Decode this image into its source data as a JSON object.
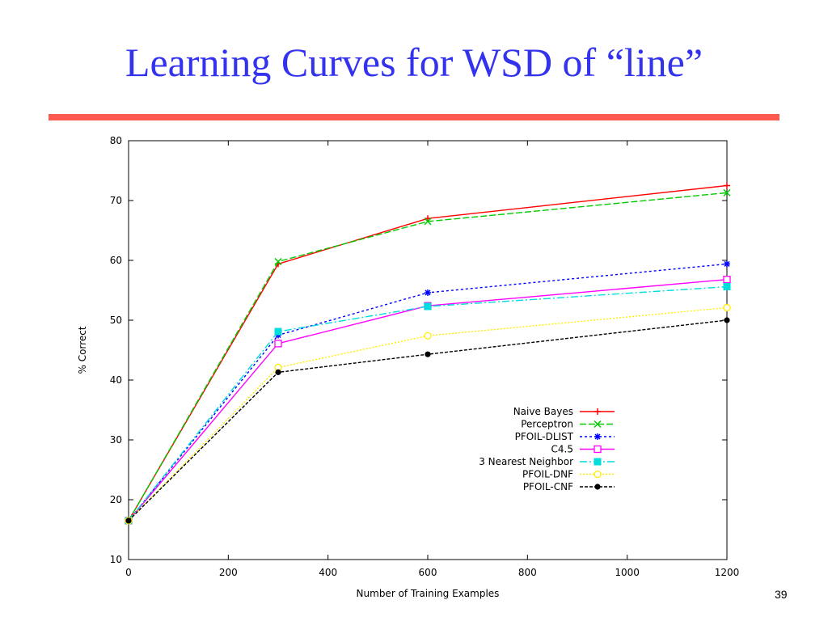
{
  "slide": {
    "title": "Learning Curves for WSD of “line”",
    "page_number": "39",
    "rule_color": "#ff5a50",
    "title_color": "#3333ee"
  },
  "chart_data": {
    "type": "line",
    "xlabel": "Number of Training Examples",
    "ylabel": "% Correct",
    "xlim": [
      0,
      1200
    ],
    "ylim": [
      10,
      80
    ],
    "xticks": [
      0,
      200,
      400,
      600,
      800,
      1000,
      1200
    ],
    "yticks": [
      10,
      20,
      30,
      40,
      50,
      60,
      70,
      80
    ],
    "grid": false,
    "legend_position": "bottom-right",
    "x": [
      0,
      300,
      600,
      1200
    ],
    "series": [
      {
        "name": "Naive Bayes",
        "color": "#ff0000",
        "marker": "plus",
        "dash": "",
        "values": [
          16.5,
          59.4,
          67.0,
          72.5
        ]
      },
      {
        "name": "Perceptron",
        "color": "#00cc00",
        "marker": "x",
        "dash": "8 3",
        "values": [
          16.5,
          59.8,
          66.5,
          71.3
        ]
      },
      {
        "name": "PFOIL-DLIST",
        "color": "#0000ff",
        "marker": "star",
        "dash": "3 3",
        "values": [
          16.5,
          47.5,
          54.6,
          59.4
        ]
      },
      {
        "name": "C4.5",
        "color": "#ff00ff",
        "marker": "square-open",
        "dash": "",
        "values": [
          16.5,
          46.1,
          52.4,
          56.8
        ]
      },
      {
        "name": "3 Nearest Neighbor",
        "color": "#00dddd",
        "marker": "square-filled",
        "dash": "9 3 2 3",
        "values": [
          16.5,
          48.1,
          52.3,
          55.6
        ]
      },
      {
        "name": "PFOIL-DNF",
        "color": "#ffee00",
        "marker": "circle-open",
        "dash": "2 2",
        "values": [
          16.5,
          42.1,
          47.4,
          52.1
        ]
      },
      {
        "name": "PFOIL-CNF",
        "color": "#000000",
        "marker": "circle-filled",
        "dash": "4 2",
        "values": [
          16.5,
          41.3,
          44.3,
          50.0
        ]
      }
    ]
  }
}
